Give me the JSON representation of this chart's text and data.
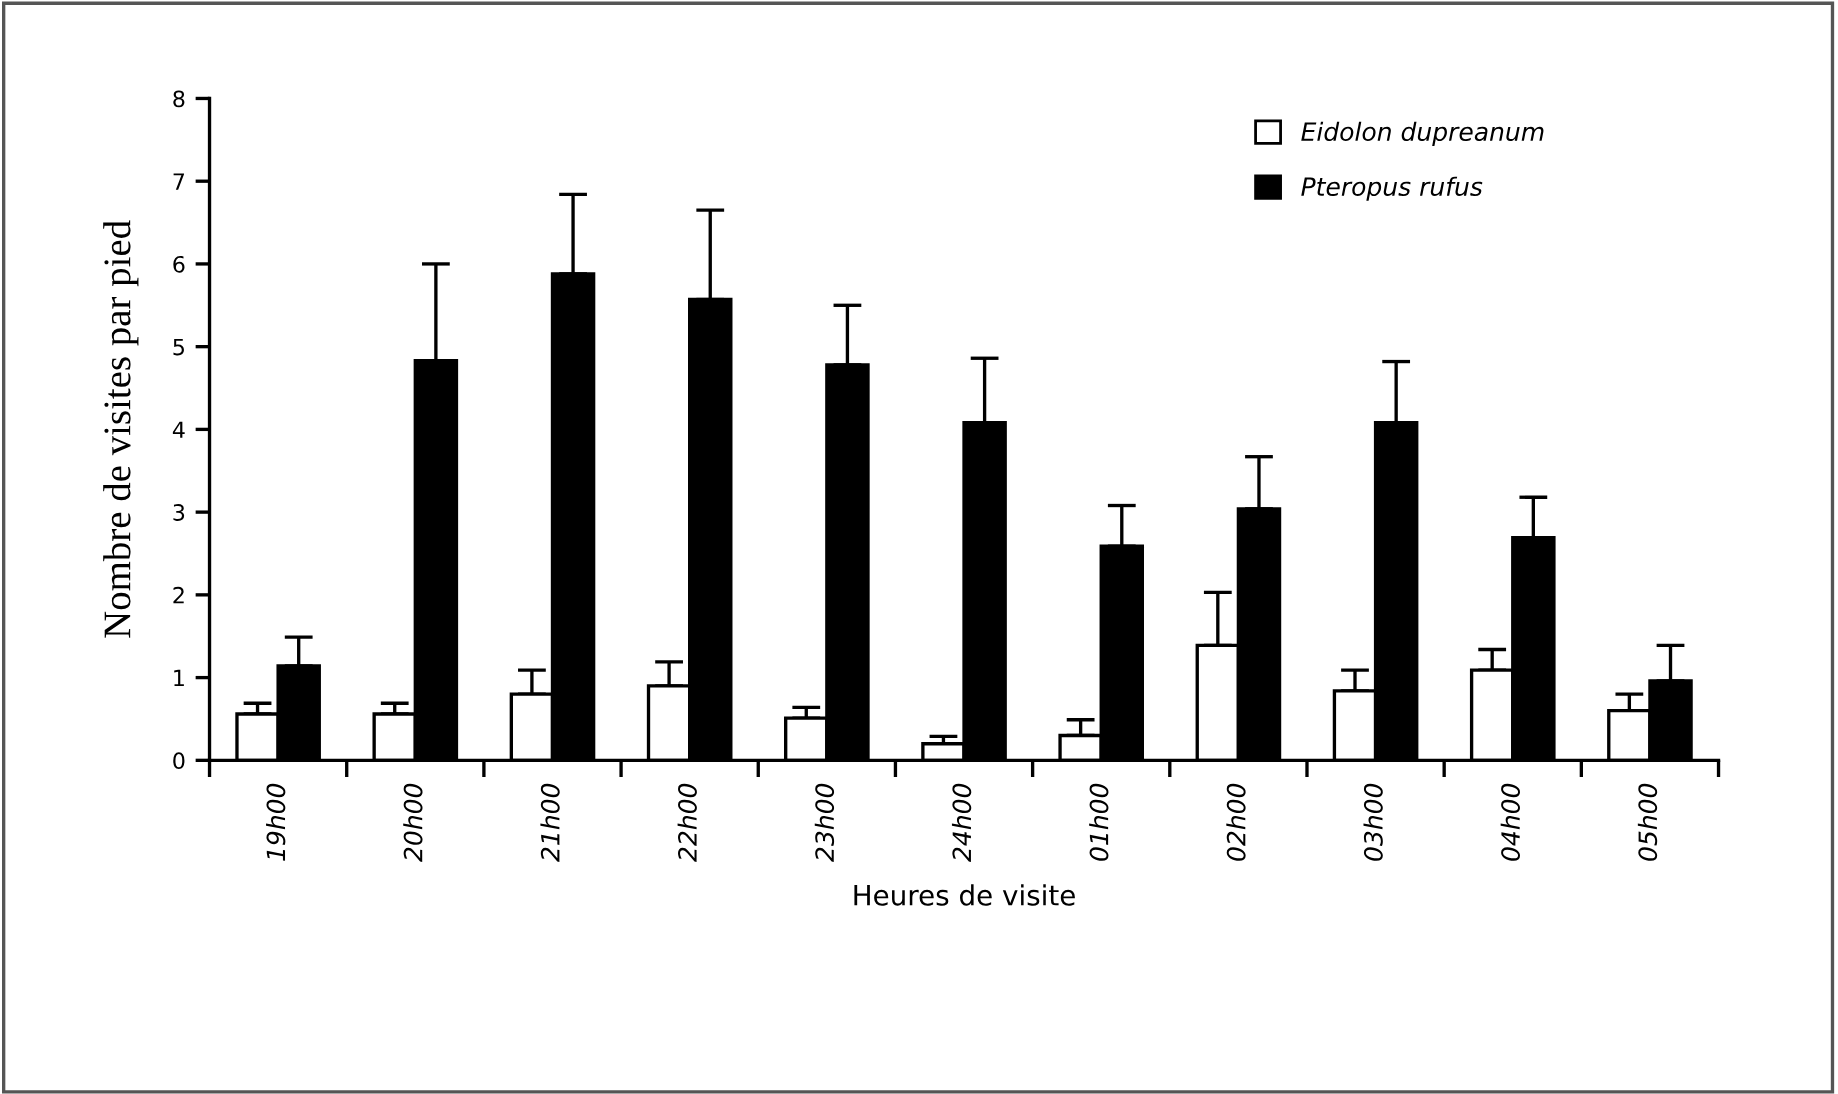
{
  "chart_data": {
    "type": "bar",
    "xlabel": "Heures de visite",
    "ylabel": "Nombre de visites par pied",
    "categories": [
      "19h00",
      "20h00",
      "21h00",
      "22h00",
      "23h00",
      "24h00",
      "01h00",
      "02h00",
      "03h00",
      "04h00",
      "05h00"
    ],
    "series": [
      {
        "name": "Eidolon dupreanum",
        "color": "#ffffff",
        "values": [
          0.56,
          0.56,
          0.8,
          0.9,
          0.51,
          0.2,
          0.3,
          1.39,
          0.84,
          1.09,
          0.6
        ],
        "errors": [
          [
            0.56,
            0.69
          ],
          [
            0.56,
            0.69
          ],
          [
            0.8,
            1.09
          ],
          [
            0.9,
            1.19
          ],
          [
            0.51,
            0.64
          ],
          [
            0.2,
            0.29
          ],
          [
            0.3,
            0.49
          ],
          [
            1.39,
            2.03
          ],
          [
            0.84,
            1.09
          ],
          [
            1.09,
            1.34
          ],
          [
            0.6,
            0.8
          ]
        ]
      },
      {
        "name": "Pteropus rufus",
        "color": "#000000",
        "values": [
          1.14,
          4.83,
          5.88,
          5.57,
          4.78,
          4.08,
          2.59,
          3.04,
          4.08,
          2.69,
          0.96
        ],
        "errors": [
          [
            1.14,
            1.49
          ],
          [
            4.83,
            6.0
          ],
          [
            5.88,
            6.84
          ],
          [
            5.57,
            6.65
          ],
          [
            4.78,
            5.5
          ],
          [
            4.08,
            4.86
          ],
          [
            2.59,
            3.08
          ],
          [
            3.04,
            3.67
          ],
          [
            4.08,
            4.82
          ],
          [
            2.69,
            3.18
          ],
          [
            0.96,
            1.39
          ]
        ]
      }
    ],
    "ylim": [
      0,
      8
    ],
    "yticks": [
      0,
      1,
      2,
      3,
      4,
      5,
      6,
      7,
      8
    ],
    "grid": false,
    "legend": "top right"
  }
}
